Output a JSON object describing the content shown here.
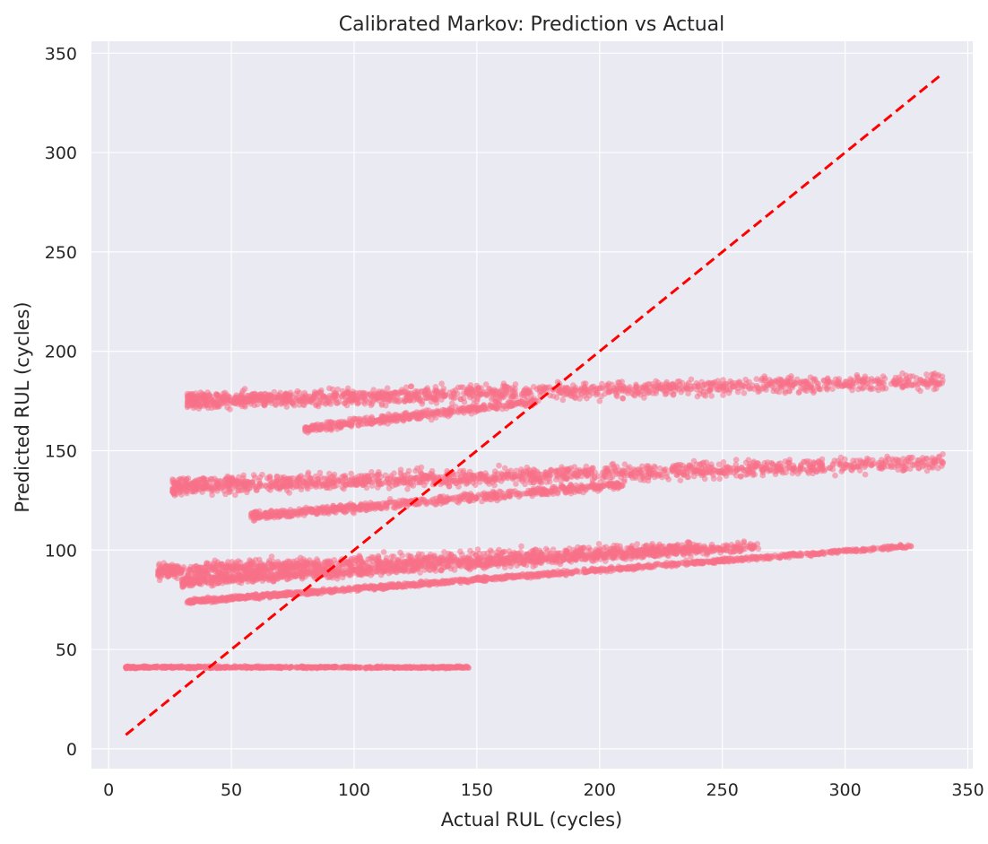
{
  "chart_data": {
    "type": "scatter",
    "title": "Calibrated Markov: Prediction vs Actual",
    "xlabel": "Actual RUL (cycles)",
    "ylabel": "Predicted RUL (cycles)",
    "xlim": [
      -7,
      352
    ],
    "ylim": [
      -10,
      356
    ],
    "xticks": [
      0,
      50,
      100,
      150,
      200,
      250,
      300,
      350
    ],
    "yticks": [
      0,
      50,
      100,
      150,
      200,
      250,
      300,
      350
    ],
    "grid": true,
    "legend": "none",
    "colors": {
      "background": "#eaeaf2",
      "grid": "#ffffff",
      "points": "#f77189",
      "reference_line": "#ff0000"
    },
    "series": [
      {
        "marker": "point",
        "clusters": [
          {
            "x_range": [
              7,
              147
            ],
            "y_at_start": 41,
            "y_at_end": 41,
            "spread": 0.5
          },
          {
            "x_range": [
              20,
              240
            ],
            "y_at_start": 89,
            "y_at_end": 101,
            "spread": 3.5
          },
          {
            "x_range": [
              30,
              265
            ],
            "y_at_start": 84,
            "y_at_end": 102,
            "spread": 2.5
          },
          {
            "x_range": [
              32,
              327
            ],
            "y_at_start": 74,
            "y_at_end": 102,
            "spread": 1.0
          },
          {
            "x_range": [
              26,
              340
            ],
            "y_at_start": 132,
            "y_at_end": 144,
            "spread": 4.0
          },
          {
            "x_range": [
              58,
              210
            ],
            "y_at_start": 117,
            "y_at_end": 133,
            "spread": 2.0
          },
          {
            "x_range": [
              32,
              340
            ],
            "y_at_start": 175,
            "y_at_end": 185,
            "spread": 4.0
          },
          {
            "x_range": [
              80,
              175
            ],
            "y_at_start": 161,
            "y_at_end": 175,
            "spread": 2.0
          }
        ]
      },
      {
        "name": "",
        "type": "line",
        "style": "dashed",
        "x": [
          7,
          340
        ],
        "y": [
          7,
          340
        ]
      }
    ]
  }
}
